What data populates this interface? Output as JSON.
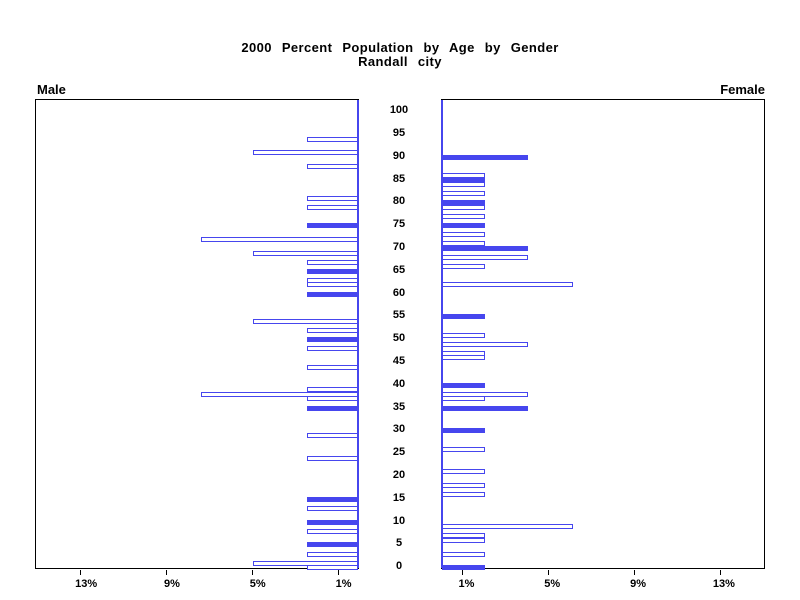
{
  "chart_data": {
    "type": "bar",
    "variant": "population_pyramid",
    "title": "2000 Percent Population by Age by Gender",
    "subtitle": "Randall city",
    "panels": {
      "left_label": "Male",
      "right_label": "Female"
    },
    "bar_color": "#4646EE",
    "age_axis": {
      "min": 0,
      "max": 100,
      "tick_step": 5,
      "tick_labels": [
        "0",
        "5",
        "10",
        "15",
        "20",
        "25",
        "30",
        "35",
        "40",
        "45",
        "50",
        "55",
        "60",
        "65",
        "70",
        "75",
        "80",
        "85",
        "90",
        "95",
        "100"
      ]
    },
    "percent_axis": {
      "min": 0,
      "max": 15,
      "ticks": [
        1,
        5,
        9,
        13
      ],
      "tick_labels": [
        "1%",
        "5%",
        "9%",
        "13%"
      ],
      "left_panel_label_order": [
        "13%",
        "9%",
        "5%",
        "1%"
      ],
      "grid": false
    },
    "male_bars": [
      {
        "age": 94,
        "pct": 2.4,
        "fill": "outline"
      },
      {
        "age": 91,
        "pct": 4.9,
        "fill": "outline"
      },
      {
        "age": 88,
        "pct": 2.4,
        "fill": "outline"
      },
      {
        "age": 81,
        "pct": 2.4,
        "fill": "outline"
      },
      {
        "age": 79,
        "pct": 2.4,
        "fill": "outline"
      },
      {
        "age": 75,
        "pct": 2.4,
        "fill": "solid"
      },
      {
        "age": 72,
        "pct": 7.3,
        "fill": "outline"
      },
      {
        "age": 69,
        "pct": 4.9,
        "fill": "outline"
      },
      {
        "age": 67,
        "pct": 2.4,
        "fill": "outline"
      },
      {
        "age": 65,
        "pct": 2.4,
        "fill": "solid"
      },
      {
        "age": 63,
        "pct": 2.4,
        "fill": "outline"
      },
      {
        "age": 62,
        "pct": 2.4,
        "fill": "outline"
      },
      {
        "age": 60,
        "pct": 2.4,
        "fill": "solid"
      },
      {
        "age": 54,
        "pct": 4.9,
        "fill": "outline"
      },
      {
        "age": 52,
        "pct": 2.4,
        "fill": "outline"
      },
      {
        "age": 50,
        "pct": 2.4,
        "fill": "solid"
      },
      {
        "age": 48,
        "pct": 2.4,
        "fill": "outline"
      },
      {
        "age": 44,
        "pct": 2.4,
        "fill": "outline"
      },
      {
        "age": 39,
        "pct": 2.4,
        "fill": "outline"
      },
      {
        "age": 38,
        "pct": 7.3,
        "fill": "outline"
      },
      {
        "age": 37,
        "pct": 2.4,
        "fill": "outline"
      },
      {
        "age": 35,
        "pct": 2.4,
        "fill": "solid"
      },
      {
        "age": 29,
        "pct": 2.4,
        "fill": "outline"
      },
      {
        "age": 24,
        "pct": 2.4,
        "fill": "outline"
      },
      {
        "age": 15,
        "pct": 2.4,
        "fill": "solid"
      },
      {
        "age": 13,
        "pct": 2.4,
        "fill": "outline"
      },
      {
        "age": 10,
        "pct": 2.4,
        "fill": "solid"
      },
      {
        "age": 8,
        "pct": 2.4,
        "fill": "outline"
      },
      {
        "age": 5,
        "pct": 2.4,
        "fill": "solid"
      },
      {
        "age": 3,
        "pct": 2.4,
        "fill": "outline"
      },
      {
        "age": 1,
        "pct": 4.9,
        "fill": "outline"
      },
      {
        "age": 0,
        "pct": 2.4,
        "fill": "outline"
      }
    ],
    "female_bars": [
      {
        "age": 90,
        "pct": 4.0,
        "fill": "solid"
      },
      {
        "age": 86,
        "pct": 2.0,
        "fill": "outline"
      },
      {
        "age": 85,
        "pct": 2.0,
        "fill": "solid"
      },
      {
        "age": 84,
        "pct": 2.0,
        "fill": "outline"
      },
      {
        "age": 82,
        "pct": 2.0,
        "fill": "outline"
      },
      {
        "age": 80,
        "pct": 2.0,
        "fill": "solid"
      },
      {
        "age": 79,
        "pct": 2.0,
        "fill": "outline"
      },
      {
        "age": 77,
        "pct": 2.0,
        "fill": "outline"
      },
      {
        "age": 75,
        "pct": 2.0,
        "fill": "solid"
      },
      {
        "age": 73,
        "pct": 2.0,
        "fill": "outline"
      },
      {
        "age": 71,
        "pct": 2.0,
        "fill": "outline"
      },
      {
        "age": 70,
        "pct": 4.0,
        "fill": "solid"
      },
      {
        "age": 68,
        "pct": 4.0,
        "fill": "outline"
      },
      {
        "age": 66,
        "pct": 2.0,
        "fill": "outline"
      },
      {
        "age": 62,
        "pct": 6.1,
        "fill": "outline"
      },
      {
        "age": 55,
        "pct": 2.0,
        "fill": "solid"
      },
      {
        "age": 51,
        "pct": 2.0,
        "fill": "outline"
      },
      {
        "age": 49,
        "pct": 4.0,
        "fill": "outline"
      },
      {
        "age": 47,
        "pct": 2.0,
        "fill": "outline"
      },
      {
        "age": 46,
        "pct": 2.0,
        "fill": "outline"
      },
      {
        "age": 40,
        "pct": 2.0,
        "fill": "solid"
      },
      {
        "age": 38,
        "pct": 4.0,
        "fill": "outline"
      },
      {
        "age": 37,
        "pct": 2.0,
        "fill": "outline"
      },
      {
        "age": 35,
        "pct": 4.0,
        "fill": "solid"
      },
      {
        "age": 30,
        "pct": 2.0,
        "fill": "solid"
      },
      {
        "age": 26,
        "pct": 2.0,
        "fill": "outline"
      },
      {
        "age": 21,
        "pct": 2.0,
        "fill": "outline"
      },
      {
        "age": 18,
        "pct": 2.0,
        "fill": "outline"
      },
      {
        "age": 16,
        "pct": 2.0,
        "fill": "outline"
      },
      {
        "age": 9,
        "pct": 6.1,
        "fill": "outline"
      },
      {
        "age": 7,
        "pct": 2.0,
        "fill": "outline"
      },
      {
        "age": 6,
        "pct": 2.0,
        "fill": "outline"
      },
      {
        "age": 3,
        "pct": 2.0,
        "fill": "outline"
      },
      {
        "age": 0,
        "pct": 2.0,
        "fill": "solid"
      }
    ]
  }
}
